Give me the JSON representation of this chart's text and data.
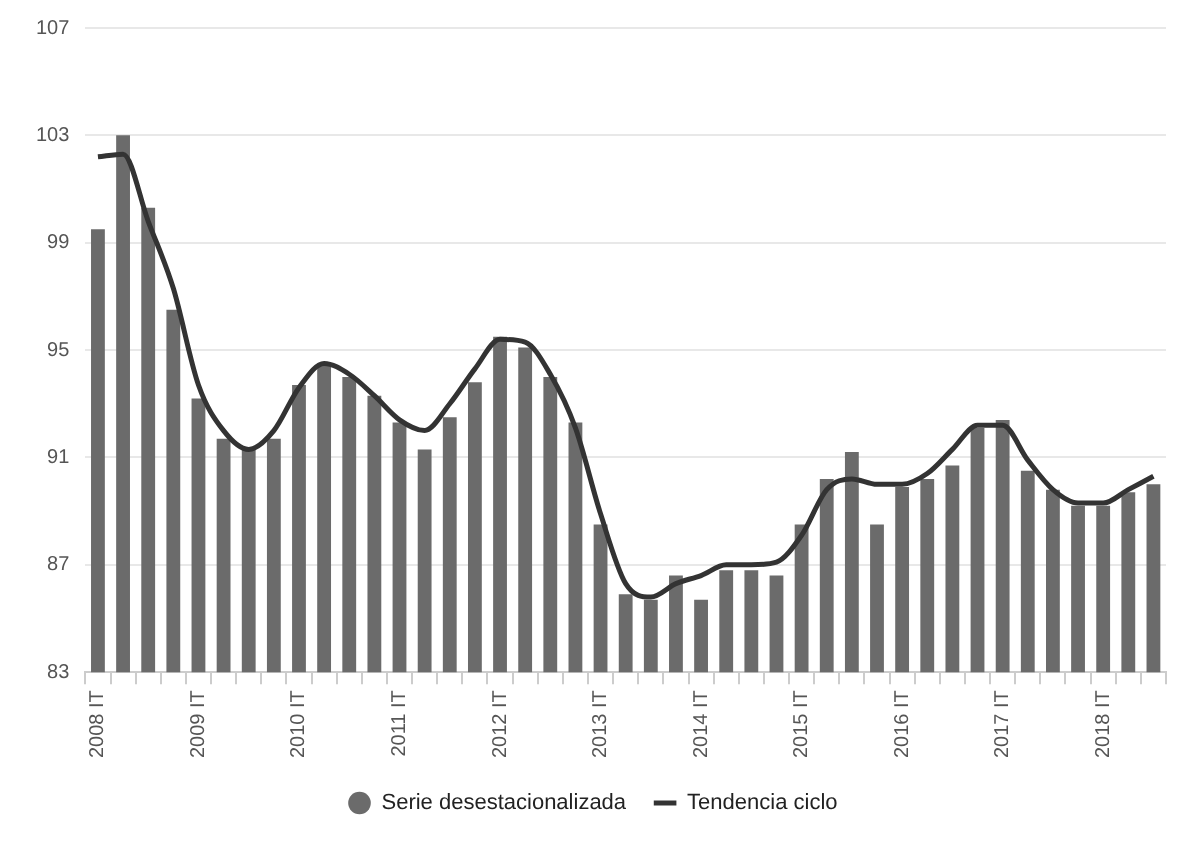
{
  "chart_data": {
    "type": "bar",
    "categories": [
      "2008 IT",
      null,
      null,
      null,
      "2009 IT",
      null,
      null,
      null,
      "2010 IT",
      null,
      null,
      null,
      "2011 IT",
      null,
      null,
      null,
      "2012 IT",
      null,
      null,
      null,
      "2013 IT",
      null,
      null,
      null,
      "2014 IT",
      null,
      null,
      null,
      "2015 IT",
      null,
      null,
      null,
      "2016 IT",
      null,
      null,
      null,
      "2017 IT",
      null,
      null,
      null,
      "2018 IT",
      null,
      null
    ],
    "series": [
      {
        "name": "Serie desestacionalizada",
        "color": "#6b6b6b",
        "values": [
          99.5,
          103.0,
          100.3,
          96.5,
          93.2,
          91.7,
          91.3,
          91.7,
          93.7,
          94.5,
          94.0,
          93.3,
          92.3,
          91.3,
          92.5,
          93.8,
          95.5,
          95.1,
          94.0,
          92.3,
          88.5,
          85.9,
          85.7,
          86.6,
          85.7,
          86.8,
          86.8,
          86.6,
          88.5,
          90.2,
          91.2,
          88.5,
          89.9,
          90.2,
          90.7,
          92.1,
          92.4,
          90.5,
          89.8,
          89.2,
          89.2,
          89.7,
          90.0
        ]
      },
      {
        "name": "Tendencia ciclo",
        "type": "line",
        "color": "#333333",
        "values": [
          102.2,
          102.3,
          99.8,
          97.3,
          93.7,
          92.0,
          91.3,
          92.0,
          93.6,
          94.5,
          94.1,
          93.3,
          92.4,
          92.0,
          93.0,
          94.3,
          95.4,
          95.3,
          94.1,
          92.1,
          88.9,
          86.3,
          85.8,
          86.3,
          86.6,
          87.0,
          87.0,
          87.1,
          88.1,
          89.8,
          90.2,
          90.0,
          90.0,
          90.4,
          91.3,
          92.2,
          92.2,
          90.9,
          89.8,
          89.3,
          89.3,
          89.8,
          90.3
        ]
      }
    ],
    "ylim": [
      83,
      107
    ],
    "yticks": [
      83,
      87,
      91,
      95,
      99,
      103,
      107
    ],
    "grid": "y",
    "legend": "bottom",
    "marker": "none",
    "line_style": "solid"
  }
}
